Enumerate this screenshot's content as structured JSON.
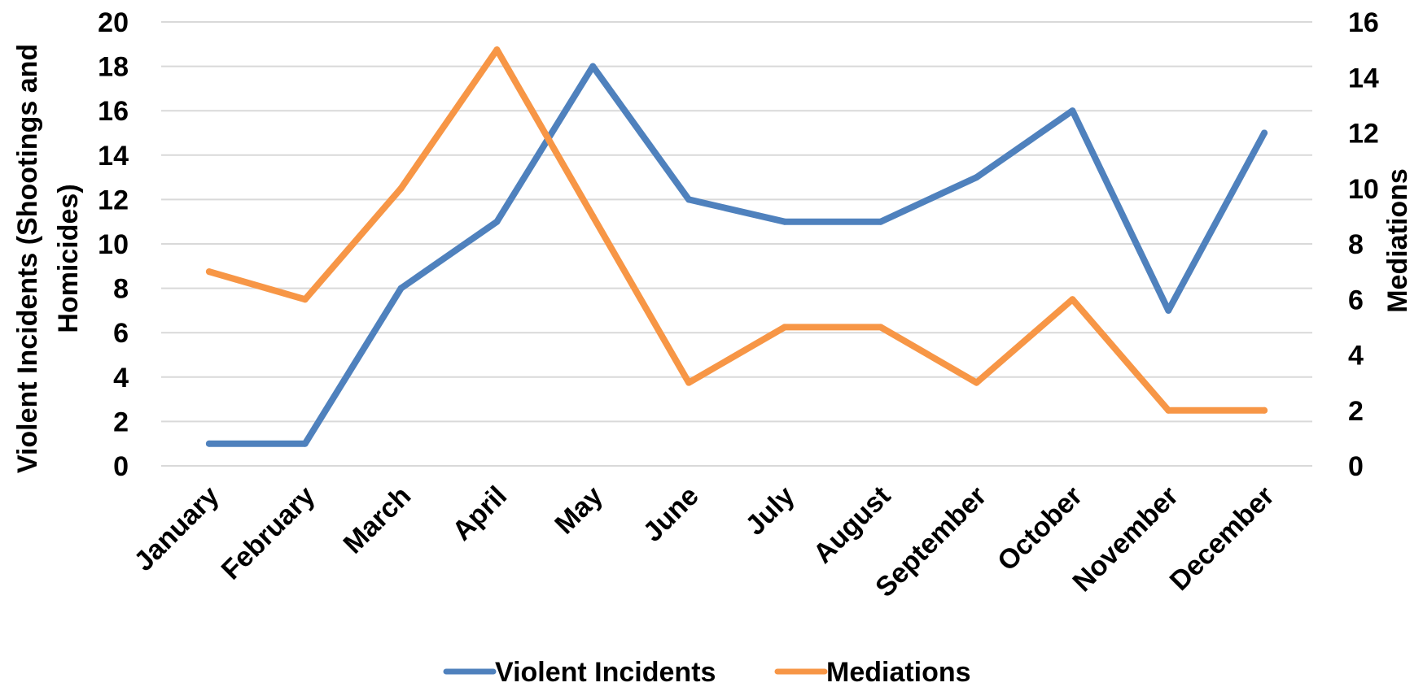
{
  "chart_data": {
    "type": "line",
    "categories": [
      "January",
      "February",
      "March",
      "April",
      "May",
      "June",
      "July",
      "August",
      "September",
      "October",
      "November",
      "December"
    ],
    "series": [
      {
        "name": "Violent Incidents",
        "axis": "left",
        "color": "#4f81bd",
        "values": [
          1,
          1,
          8,
          11,
          18,
          12,
          11,
          11,
          13,
          16,
          7,
          15
        ]
      },
      {
        "name": "Mediations",
        "axis": "right",
        "color": "#f79646",
        "values": [
          7,
          6,
          10,
          15,
          9,
          3,
          5,
          5,
          3,
          6,
          2,
          2
        ]
      }
    ],
    "ylabel": "Violent Incidents (Shootings and Homicides)",
    "ylabel_lines": [
      "Violent Incidents (Shootings and",
      "Homicides)"
    ],
    "y2label": "Mediations",
    "ylim": [
      0,
      20
    ],
    "y2lim": [
      0,
      16
    ],
    "yticks": [
      0,
      2,
      4,
      6,
      8,
      10,
      12,
      14,
      16,
      18,
      20
    ],
    "y2ticks": [
      0,
      2,
      4,
      6,
      8,
      10,
      12,
      14,
      16
    ],
    "grid": true,
    "legend_position": "bottom"
  }
}
